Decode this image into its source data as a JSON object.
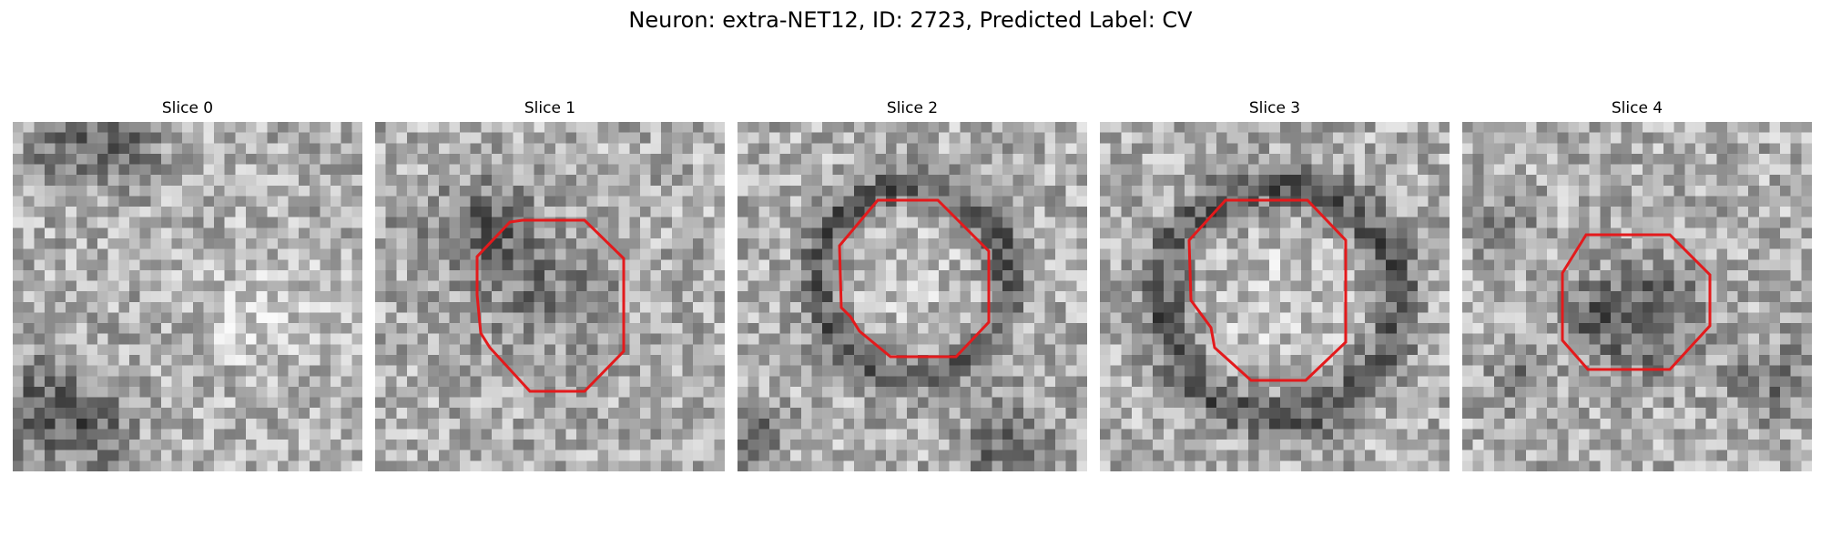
{
  "figure": {
    "title": "Neuron: extra-NET12, ID: 2723, Predicted Label: CV"
  },
  "panels": [
    {
      "label": "Slice 0"
    },
    {
      "label": "Slice 1"
    },
    {
      "label": "Slice 2"
    },
    {
      "label": "Slice 3"
    },
    {
      "label": "Slice 4"
    }
  ],
  "image_style": {
    "colormap": "grayscale",
    "grid_resolution": 33,
    "contour_color": "#e31a1c"
  }
}
